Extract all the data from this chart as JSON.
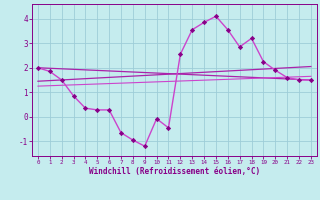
{
  "xlabel": "Windchill (Refroidissement éolien,°C)",
  "bg_color": "#c5ecee",
  "grid_color": "#9ecdd8",
  "line_color_dark": "#880088",
  "line_color_mid": "#aa22aa",
  "line_color_light": "#cc44cc",
  "xlim": [
    -0.5,
    23.5
  ],
  "ylim": [
    -1.6,
    4.6
  ],
  "yticks": [
    -1,
    0,
    1,
    2,
    3,
    4
  ],
  "xticks": [
    0,
    1,
    2,
    3,
    4,
    5,
    6,
    7,
    8,
    9,
    10,
    11,
    12,
    13,
    14,
    15,
    16,
    17,
    18,
    19,
    20,
    21,
    22,
    23
  ],
  "series_wavy": {
    "x": [
      0,
      1,
      2,
      3,
      4,
      5,
      6,
      7,
      8,
      9,
      10,
      11,
      12,
      13,
      14,
      15,
      16,
      17,
      18,
      19,
      20,
      21,
      22,
      23
    ],
    "y": [
      2.0,
      1.85,
      1.5,
      0.85,
      0.35,
      0.28,
      0.28,
      -0.65,
      -0.95,
      -1.2,
      -0.08,
      -0.45,
      2.55,
      3.55,
      3.85,
      4.1,
      3.55,
      2.85,
      3.2,
      2.25,
      1.9,
      1.6,
      1.5,
      1.5
    ]
  },
  "series_up": {
    "x": [
      0,
      23
    ],
    "y": [
      1.45,
      2.05
    ]
  },
  "series_down": {
    "x": [
      0,
      23
    ],
    "y": [
      2.0,
      1.5
    ]
  },
  "series_flat": {
    "x": [
      0,
      23
    ],
    "y": [
      1.25,
      1.65
    ]
  }
}
